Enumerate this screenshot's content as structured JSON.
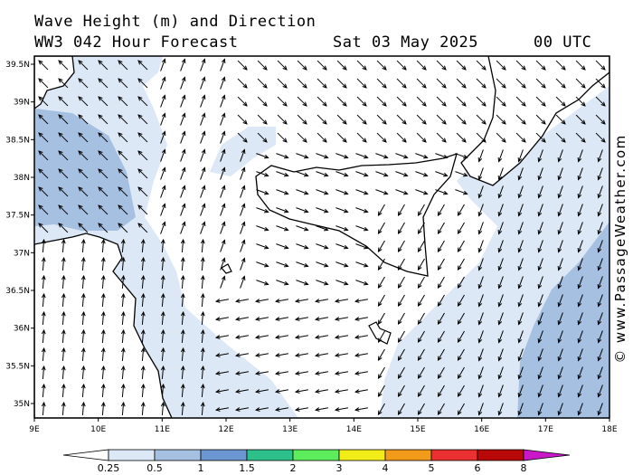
{
  "title": {
    "line1": "Wave Height (m) and Direction",
    "line2": "WW3 042 Hour Forecast",
    "date": "Sat 03 May 2025",
    "time": "00 UTC"
  },
  "credit": "© www.PassageWeather.com",
  "map": {
    "lon_labels": [
      "9E",
      "10E",
      "11E",
      "12E",
      "13E",
      "14E",
      "15E",
      "16E",
      "17E",
      "18E"
    ],
    "lat_labels": [
      "39.5N",
      "39N",
      "38.5N",
      "38N",
      "37.5N",
      "37N",
      "36.5N",
      "36N",
      "35.5N",
      "35N"
    ],
    "colors": {
      "band_025_05": "#dde8f6",
      "band_05_1": "#a6c0e2",
      "land": "#ffffff",
      "coast": "#000000"
    },
    "arrow_pattern": "west sector: arrows toward NW/N; central Strait of Sicily: arrows toward SE/E; Ionian Sea east: arrows toward S/SW; Tyrrhenian Sea north: arrows toward SE"
  },
  "legend": {
    "labels": [
      "0.25",
      "0.5",
      "1",
      "1.5",
      "2",
      "3",
      "4",
      "5",
      "6",
      "8"
    ],
    "colors": [
      "#ffffff",
      "#dde8f6",
      "#a6c0e2",
      "#6c96d2",
      "#2ec08a",
      "#5cec5c",
      "#f2ec18",
      "#f29a1a",
      "#ea3030",
      "#b80808",
      "#c818c8"
    ]
  }
}
